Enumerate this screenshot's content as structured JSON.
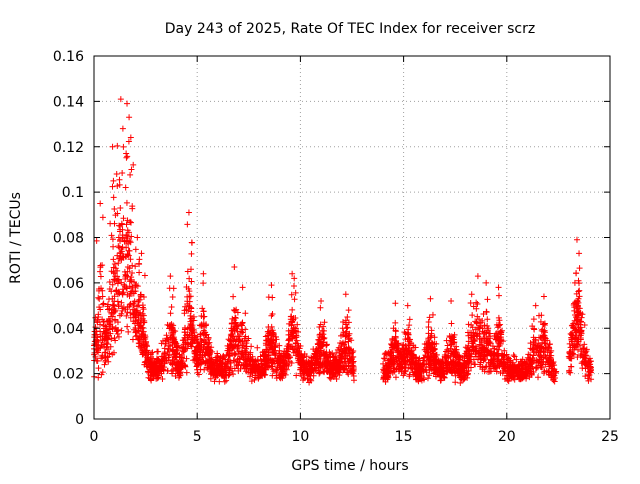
{
  "chart_data": {
    "type": "scatter",
    "title": "Day 243 of 2025, Rate Of TEC Index for receiver scrz",
    "xlabel": "GPS time / hours",
    "ylabel": "ROTI / TECUs",
    "xlim": [
      0,
      25
    ],
    "ylim": [
      0,
      0.16
    ],
    "xticks": [
      0,
      5,
      10,
      15,
      20,
      25
    ],
    "xtick_labels": [
      "0",
      "5",
      "10",
      "15",
      "20",
      "25"
    ],
    "yticks": [
      0,
      0.02,
      0.04,
      0.06,
      0.08,
      0.1,
      0.12,
      0.14,
      0.16
    ],
    "ytick_labels": [
      "0",
      "0.02",
      "0.04",
      "0.06",
      "0.08",
      "0.1",
      "0.12",
      "0.14",
      "0.16"
    ],
    "grid": true,
    "marker": "+",
    "color": "#ff0000",
    "segments": [
      {
        "x_start": 0.0,
        "x_end": 12.6,
        "base": 0.022,
        "spread": 0.012
      },
      {
        "x_start": 14.0,
        "x_end": 22.4,
        "base": 0.021,
        "spread": 0.011
      },
      {
        "x_start": 23.0,
        "x_end": 24.1,
        "base": 0.022,
        "spread": 0.012
      }
    ],
    "peaks": [
      {
        "x": 0.3,
        "y": 0.095
      },
      {
        "x": 0.9,
        "y": 0.12
      },
      {
        "x": 1.1,
        "y": 0.108
      },
      {
        "x": 1.3,
        "y": 0.141
      },
      {
        "x": 1.4,
        "y": 0.128
      },
      {
        "x": 1.6,
        "y": 0.139
      },
      {
        "x": 1.7,
        "y": 0.133
      },
      {
        "x": 1.9,
        "y": 0.112
      },
      {
        "x": 2.1,
        "y": 0.08
      },
      {
        "x": 2.3,
        "y": 0.073
      },
      {
        "x": 3.7,
        "y": 0.063
      },
      {
        "x": 4.6,
        "y": 0.091
      },
      {
        "x": 4.7,
        "y": 0.066
      },
      {
        "x": 5.3,
        "y": 0.064
      },
      {
        "x": 6.8,
        "y": 0.067
      },
      {
        "x": 7.2,
        "y": 0.058
      },
      {
        "x": 8.6,
        "y": 0.059
      },
      {
        "x": 9.6,
        "y": 0.064
      },
      {
        "x": 9.7,
        "y": 0.062
      },
      {
        "x": 11.0,
        "y": 0.052
      },
      {
        "x": 12.2,
        "y": 0.055
      },
      {
        "x": 14.6,
        "y": 0.051
      },
      {
        "x": 15.2,
        "y": 0.05
      },
      {
        "x": 16.3,
        "y": 0.053
      },
      {
        "x": 17.3,
        "y": 0.052
      },
      {
        "x": 18.3,
        "y": 0.055
      },
      {
        "x": 18.6,
        "y": 0.063
      },
      {
        "x": 19.0,
        "y": 0.06
      },
      {
        "x": 19.6,
        "y": 0.058
      },
      {
        "x": 21.4,
        "y": 0.05
      },
      {
        "x": 21.8,
        "y": 0.054
      },
      {
        "x": 23.4,
        "y": 0.079
      },
      {
        "x": 23.5,
        "y": 0.073
      },
      {
        "x": 23.3,
        "y": 0.06
      }
    ]
  }
}
